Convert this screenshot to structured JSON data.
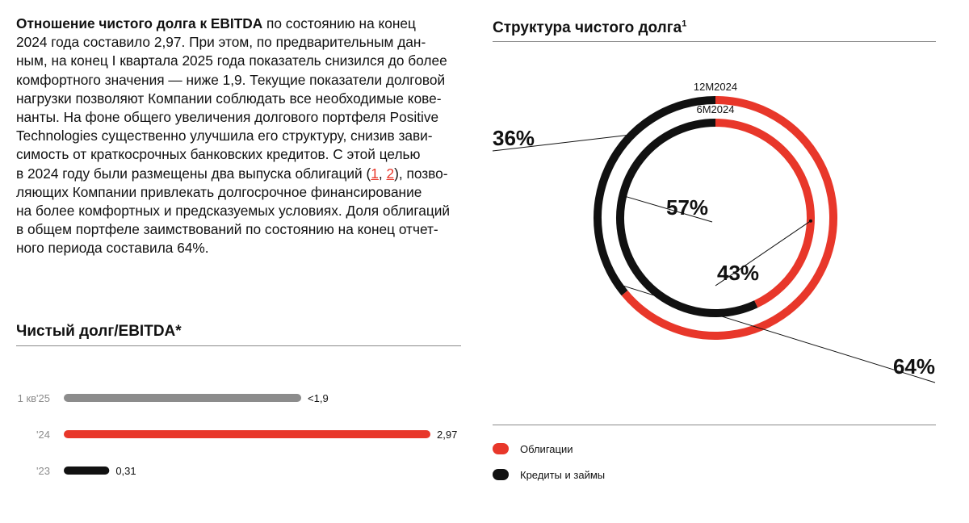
{
  "paragraph": {
    "bold_lead": "Отношение чистого долга к EBITDA",
    "line1_rest": " по состоянию на конец",
    "line2": "2024 года составило 2,97. При этом, по предварительным дан-",
    "line3": "ным, на конец I квартала 2025 года показатель снизился до более",
    "line4": "комфортного значения — ниже 1,9. Текущие показатели долговой",
    "line5": "нагрузки позволяют Компании соблюдать все необходимые кове-",
    "line6": "нанты. На фоне общего увеличения долгового портфеля Positive",
    "line7": "Technologies существенно улучшила его структуру, снизив зави-",
    "line8": "симость от краткосрочных банковских кредитов. С этой целью",
    "line9_pre": "в 2024 году были размещены два выпуска облигаций (",
    "link1": "1",
    "sep": ", ",
    "link2": "2",
    "line9_post": "), позво-",
    "line10": "ляющих Компании привлекать долгосрочное финансирование",
    "line11": "на более комфортных и предсказуемых условиях. Доля облигаций",
    "line12": "в общем портфеле заимствований по состоянию на конец отчет-",
    "line13": "ного периода составила 64%."
  },
  "colors": {
    "red": "#e8372a",
    "black": "#111111",
    "gray": "#8c8c8c"
  },
  "chart_data": [
    {
      "type": "bar",
      "orientation": "horizontal",
      "title": "Чистый долг/EBITDA*",
      "categories": [
        "1 кв'25",
        "'24",
        "'23"
      ],
      "values": [
        1.9,
        2.97,
        0.31
      ],
      "value_labels": [
        "<1,9",
        "2,97",
        "0,31"
      ],
      "bar_colors": [
        "#8c8c8c",
        "#e8372a",
        "#111111"
      ],
      "xlim": [
        0,
        3
      ]
    },
    {
      "type": "pie",
      "subtype": "donut",
      "title": "Структура чистого долга",
      "title_sup": "1",
      "rings": [
        {
          "name": "12M2024",
          "values": [
            64,
            36
          ],
          "labels": [
            "64%",
            "36%"
          ]
        },
        {
          "name": "6M2024",
          "values": [
            43,
            57
          ],
          "labels": [
            "43%",
            "57%"
          ]
        }
      ],
      "series": [
        "Облигации",
        "Кредиты и займы"
      ],
      "series_colors": [
        "#e8372a",
        "#111111"
      ],
      "legend": [
        {
          "label": "Облигации",
          "color": "#e8372a"
        },
        {
          "label": "Кредиты и займы",
          "color": "#111111"
        }
      ]
    }
  ]
}
